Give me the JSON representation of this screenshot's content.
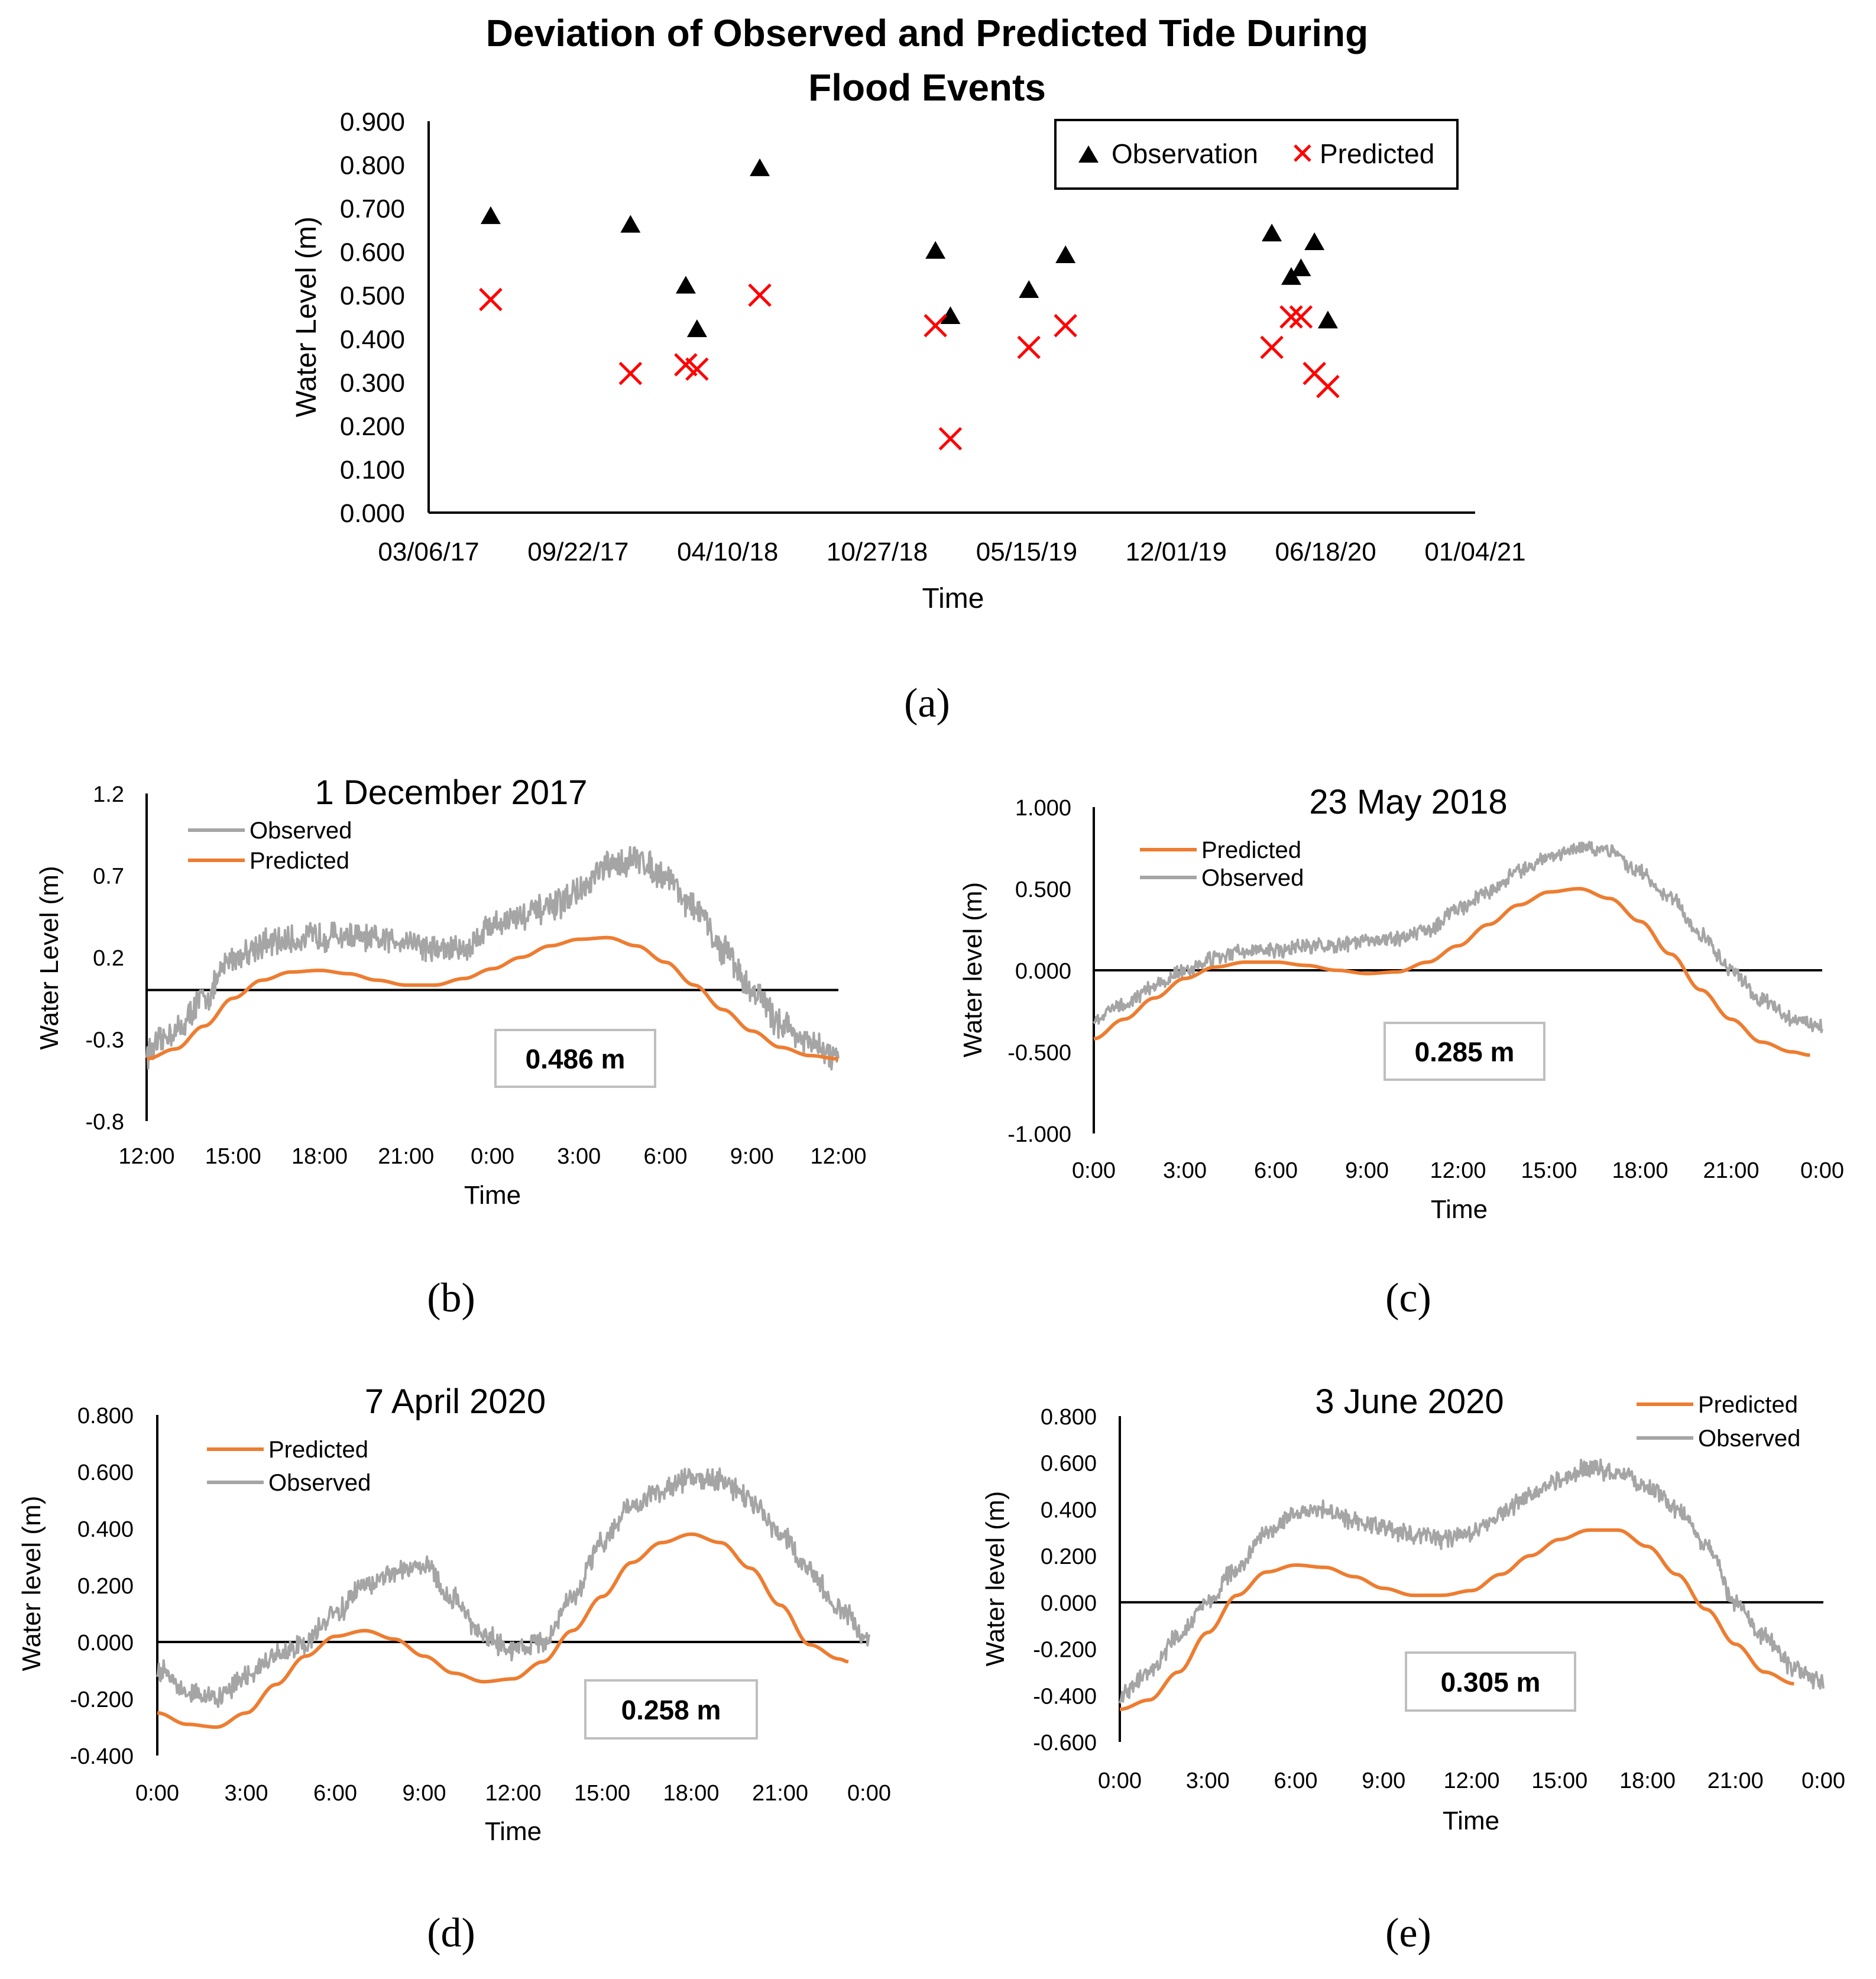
{
  "chart_data": [
    {
      "id": "a",
      "type": "scatter",
      "panel_label": "(a)",
      "title_lines": [
        "Deviation of Observed and Predicted Tide During",
        "Flood Events"
      ],
      "xlabel": "Time",
      "ylabel": "Water Level (m)",
      "ylim": [
        0,
        0.9
      ],
      "yticks": [
        "0.000",
        "0.100",
        "0.200",
        "0.300",
        "0.400",
        "0.500",
        "0.600",
        "0.700",
        "0.800",
        "0.900"
      ],
      "xlim": [
        "2017-03-06",
        "2021-01-04"
      ],
      "xtick_labels": [
        "03/06/17",
        "09/22/17",
        "04/10/18",
        "10/27/18",
        "05/15/19",
        "12/01/19",
        "06/18/20",
        "01/04/21"
      ],
      "legend_placement": "top-right",
      "series": [
        {
          "name": "Observation",
          "marker": "triangle",
          "color": "#000000",
          "points": [
            {
              "x": "2017-05-28",
              "y": 0.68
            },
            {
              "x": "2017-12-01",
              "y": 0.66
            },
            {
              "x": "2018-02-13",
              "y": 0.52
            },
            {
              "x": "2018-02-28",
              "y": 0.42
            },
            {
              "x": "2018-05-23",
              "y": 0.79
            },
            {
              "x": "2019-01-13",
              "y": 0.6
            },
            {
              "x": "2019-02-02",
              "y": 0.45
            },
            {
              "x": "2019-05-18",
              "y": 0.51
            },
            {
              "x": "2019-07-06",
              "y": 0.59
            },
            {
              "x": "2020-04-07",
              "y": 0.64
            },
            {
              "x": "2020-05-03",
              "y": 0.54
            },
            {
              "x": "2020-05-16",
              "y": 0.56
            },
            {
              "x": "2020-06-03",
              "y": 0.62
            },
            {
              "x": "2020-06-21",
              "y": 0.44
            }
          ]
        },
        {
          "name": "Predicted",
          "marker": "x",
          "color": "#ff0000",
          "points": [
            {
              "x": "2017-05-28",
              "y": 0.49
            },
            {
              "x": "2017-12-01",
              "y": 0.32
            },
            {
              "x": "2018-02-13",
              "y": 0.34
            },
            {
              "x": "2018-02-28",
              "y": 0.33
            },
            {
              "x": "2018-05-23",
              "y": 0.5
            },
            {
              "x": "2019-01-13",
              "y": 0.43
            },
            {
              "x": "2019-02-02",
              "y": 0.17
            },
            {
              "x": "2019-05-18",
              "y": 0.38
            },
            {
              "x": "2019-07-06",
              "y": 0.43
            },
            {
              "x": "2020-04-07",
              "y": 0.38
            },
            {
              "x": "2020-05-03",
              "y": 0.45
            },
            {
              "x": "2020-05-16",
              "y": 0.45
            },
            {
              "x": "2020-06-03",
              "y": 0.32
            },
            {
              "x": "2020-06-21",
              "y": 0.29
            }
          ]
        }
      ]
    },
    {
      "id": "b",
      "type": "line",
      "panel_label": "(b)",
      "title": "1 December 2017",
      "xlabel": "Time",
      "ylabel": "Water Level (m)",
      "ylim": [
        -0.8,
        1.2
      ],
      "yticks": [
        "1.2",
        "0.7",
        "0.2",
        "-0.3",
        "-0.8"
      ],
      "xtick_labels": [
        "12:00",
        "15:00",
        "18:00",
        "21:00",
        "0:00",
        "3:00",
        "6:00",
        "9:00",
        "12:00"
      ],
      "x_start_hour": 12,
      "x_end_hour": 36,
      "legend_order": [
        "Observed",
        "Predicted"
      ],
      "legend_placement": "top-left",
      "annotation": "0.486 m",
      "series": [
        {
          "name": "Observed",
          "color": "#a5a5a5",
          "x_hours": [
            12,
            13,
            14,
            15,
            16,
            17,
            18,
            19,
            20,
            21,
            22,
            23,
            24,
            25,
            26,
            27,
            28,
            29,
            30,
            31,
            32,
            33,
            34,
            35,
            36
          ],
          "values": [
            -0.38,
            -0.25,
            -0.05,
            0.2,
            0.28,
            0.3,
            0.33,
            0.33,
            0.3,
            0.31,
            0.25,
            0.25,
            0.4,
            0.45,
            0.5,
            0.6,
            0.75,
            0.8,
            0.7,
            0.5,
            0.25,
            0.0,
            -0.2,
            -0.33,
            -0.42
          ],
          "noise": 0.07
        },
        {
          "name": "Predicted",
          "color": "#ed7d31",
          "x_hours": [
            12,
            13,
            14,
            15,
            16,
            17,
            18,
            19,
            20,
            21,
            22,
            23,
            24,
            25,
            26,
            27,
            28,
            29,
            30,
            31,
            32,
            33,
            34,
            35,
            36
          ],
          "values": [
            -0.42,
            -0.36,
            -0.22,
            -0.05,
            0.06,
            0.11,
            0.12,
            0.1,
            0.06,
            0.03,
            0.03,
            0.07,
            0.13,
            0.2,
            0.27,
            0.31,
            0.32,
            0.27,
            0.17,
            0.03,
            -0.12,
            -0.25,
            -0.35,
            -0.4,
            -0.42
          ],
          "noise": 0
        }
      ]
    },
    {
      "id": "c",
      "type": "line",
      "panel_label": "(c)",
      "title": "23 May 2018",
      "xlabel": "Time",
      "ylabel": "Water level (m)",
      "ylim": [
        -1.0,
        1.0
      ],
      "yticks": [
        "1.000",
        "0.500",
        "0.000",
        "-0.500",
        "-1.000"
      ],
      "xtick_labels": [
        "0:00",
        "3:00",
        "6:00",
        "9:00",
        "12:00",
        "15:00",
        "18:00",
        "21:00",
        "0:00"
      ],
      "x_start_hour": 0,
      "x_end_hour": 24,
      "legend_order": [
        "Predicted",
        "Observed"
      ],
      "legend_placement": "top-left",
      "annotation": "0.285 m",
      "series": [
        {
          "name": "Observed",
          "color": "#a5a5a5",
          "x_hours": [
            0,
            1,
            2,
            3,
            4,
            5,
            6,
            7,
            8,
            9,
            10,
            11,
            12,
            13,
            14,
            15,
            16,
            17,
            18,
            19,
            20,
            21,
            22,
            23,
            24
          ],
          "values": [
            -0.3,
            -0.2,
            -0.1,
            0.0,
            0.07,
            0.12,
            0.12,
            0.15,
            0.15,
            0.18,
            0.2,
            0.25,
            0.38,
            0.48,
            0.6,
            0.7,
            0.75,
            0.72,
            0.6,
            0.45,
            0.22,
            0.0,
            -0.18,
            -0.3,
            -0.35
          ],
          "noise": 0.035
        },
        {
          "name": "Predicted",
          "color": "#ed7d31",
          "x_hours": [
            0,
            1,
            2,
            3,
            4,
            5,
            6,
            7,
            8,
            9,
            10,
            11,
            12,
            13,
            14,
            15,
            16,
            17,
            18,
            19,
            20,
            21,
            22,
            23,
            23.6
          ],
          "values": [
            -0.42,
            -0.3,
            -0.17,
            -0.05,
            0.02,
            0.05,
            0.05,
            0.03,
            0.0,
            -0.02,
            -0.01,
            0.05,
            0.15,
            0.28,
            0.4,
            0.48,
            0.5,
            0.44,
            0.3,
            0.1,
            -0.12,
            -0.3,
            -0.44,
            -0.5,
            -0.52
          ],
          "noise": 0
        }
      ]
    },
    {
      "id": "d",
      "type": "line",
      "panel_label": "(d)",
      "title": "7 April 2020",
      "xlabel": "Time",
      "ylabel": "Water level (m)",
      "ylim": [
        -0.4,
        0.8
      ],
      "yticks": [
        "0.800",
        "0.600",
        "0.400",
        "0.200",
        "0.000",
        "-0.200",
        "-0.400"
      ],
      "xtick_labels": [
        "0:00",
        "3:00",
        "6:00",
        "9:00",
        "12:00",
        "15:00",
        "18:00",
        "21:00",
        "0:00"
      ],
      "x_start_hour": 0,
      "x_end_hour": 24,
      "legend_order": [
        "Predicted",
        "Observed"
      ],
      "legend_placement": "top-left",
      "annotation": "0.258 m",
      "series": [
        {
          "name": "Observed",
          "color": "#a5a5a5",
          "x_hours": [
            0,
            1,
            2,
            3,
            4,
            5,
            6,
            7,
            8,
            9,
            10,
            11,
            12,
            13,
            14,
            15,
            16,
            17,
            18,
            19,
            20,
            21,
            22,
            23,
            24
          ],
          "values": [
            -0.1,
            -0.17,
            -0.2,
            -0.12,
            -0.05,
            0.0,
            0.1,
            0.2,
            0.25,
            0.28,
            0.15,
            0.02,
            -0.03,
            0.0,
            0.15,
            0.35,
            0.48,
            0.53,
            0.58,
            0.57,
            0.5,
            0.38,
            0.25,
            0.12,
            0.0
          ],
          "noise": 0.03
        },
        {
          "name": "Predicted",
          "color": "#ed7d31",
          "x_hours": [
            0,
            1,
            2,
            3,
            4,
            5,
            6,
            7,
            8,
            9,
            10,
            11,
            12,
            13,
            14,
            15,
            16,
            17,
            18,
            19,
            20,
            21,
            22,
            23,
            23.3
          ],
          "values": [
            -0.25,
            -0.29,
            -0.3,
            -0.25,
            -0.15,
            -0.05,
            0.02,
            0.04,
            0.01,
            -0.05,
            -0.11,
            -0.14,
            -0.13,
            -0.07,
            0.04,
            0.16,
            0.28,
            0.35,
            0.38,
            0.35,
            0.26,
            0.13,
            -0.01,
            -0.06,
            -0.07
          ],
          "noise": 0
        }
      ]
    },
    {
      "id": "e",
      "type": "line",
      "panel_label": "(e)",
      "title": "3 June 2020",
      "xlabel": "Time",
      "ylabel": "Water level (m)",
      "ylim": [
        -0.6,
        0.8
      ],
      "yticks": [
        "0.800",
        "0.600",
        "0.400",
        "0.200",
        "0.000",
        "-0.200",
        "-0.400",
        "-0.600"
      ],
      "xtick_labels": [
        "0:00",
        "3:00",
        "6:00",
        "9:00",
        "12:00",
        "15:00",
        "18:00",
        "21:00",
        "0:00"
      ],
      "x_start_hour": 0,
      "x_end_hour": 24,
      "legend_order": [
        "Predicted",
        "Observed"
      ],
      "legend_placement": "top-right",
      "annotation": "0.305 m",
      "series": [
        {
          "name": "Observed",
          "color": "#a5a5a5",
          "x_hours": [
            0,
            1,
            2,
            3,
            4,
            5,
            6,
            7,
            8,
            9,
            10,
            11,
            12,
            13,
            14,
            15,
            16,
            17,
            18,
            19,
            20,
            21,
            22,
            23,
            24
          ],
          "values": [
            -0.4,
            -0.3,
            -0.15,
            0.0,
            0.15,
            0.3,
            0.38,
            0.4,
            0.35,
            0.32,
            0.29,
            0.27,
            0.3,
            0.38,
            0.47,
            0.52,
            0.58,
            0.55,
            0.5,
            0.4,
            0.25,
            0.0,
            -0.15,
            -0.28,
            -0.35
          ],
          "noise": 0.03
        },
        {
          "name": "Predicted",
          "color": "#ed7d31",
          "x_hours": [
            0,
            1,
            2,
            3,
            4,
            5,
            6,
            7,
            8,
            9,
            10,
            11,
            12,
            13,
            14,
            15,
            16,
            17,
            18,
            19,
            20,
            21,
            22,
            23,
            23
          ],
          "values": [
            -0.46,
            -0.42,
            -0.3,
            -0.13,
            0.03,
            0.13,
            0.16,
            0.15,
            0.11,
            0.06,
            0.03,
            0.03,
            0.05,
            0.12,
            0.2,
            0.27,
            0.31,
            0.31,
            0.24,
            0.12,
            -0.03,
            -0.18,
            -0.3,
            -0.35,
            -0.35
          ],
          "noise": 0
        }
      ]
    }
  ]
}
